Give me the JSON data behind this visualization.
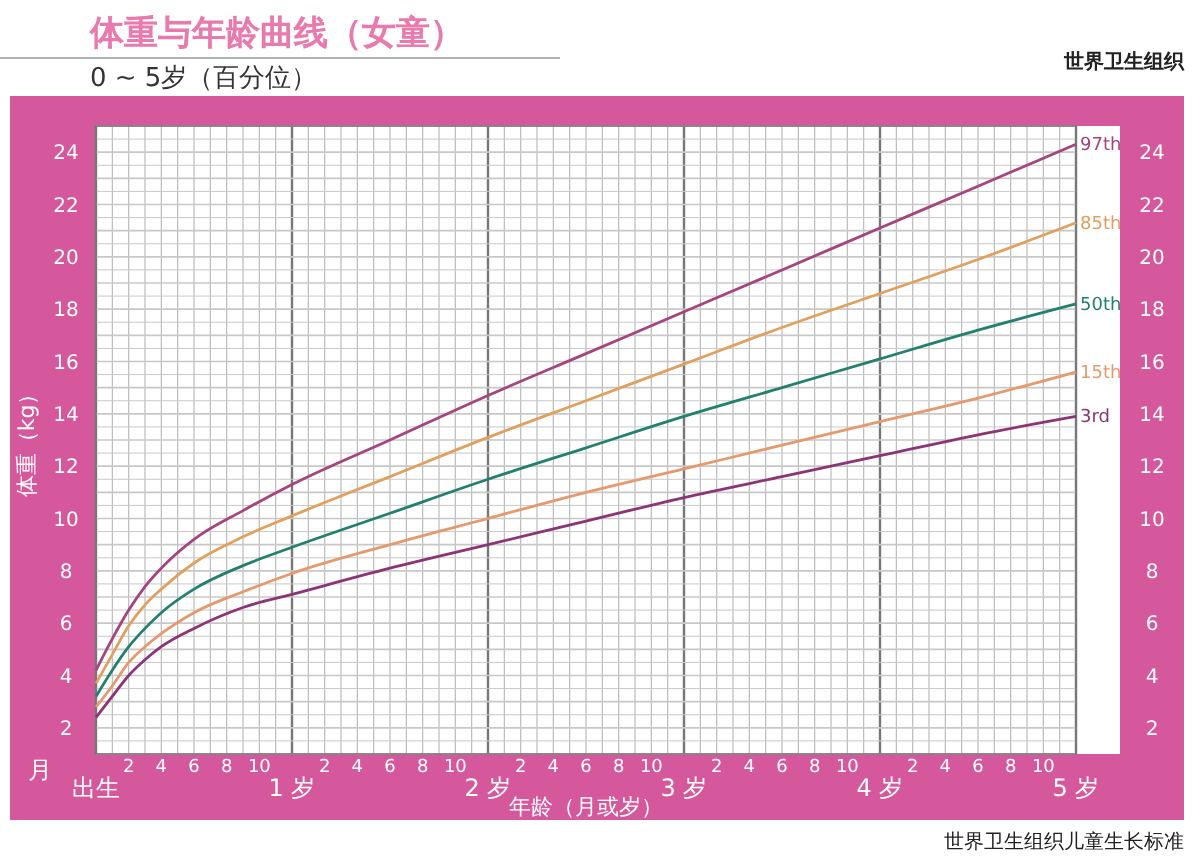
{
  "chart_data": {
    "type": "line",
    "title": "体重与年龄曲线（女童）",
    "subtitle": "0 ~ 5岁（百分位）",
    "ylabel": "体重（kg）",
    "xlabel": "年龄（月或岁）",
    "annotations": [
      "世界卫生组织",
      "月",
      "世界卫生组织儿童生长标准",
      "2",
      "4",
      "6",
      "8",
      "10",
      "2",
      "4",
      "6",
      "8",
      "10",
      "2",
      "4",
      "6",
      "8",
      "10",
      "2",
      "4",
      "6",
      "8",
      "10",
      "2",
      "4",
      "6",
      "8",
      "10"
    ],
    "x": [
      0,
      0.083,
      0.167,
      0.25,
      0.333,
      0.5,
      0.75,
      1,
      1.5,
      2,
      2.5,
      3,
      3.5,
      4,
      4.5,
      5
    ],
    "xlim": [
      0,
      5
    ],
    "xticks": [
      {
        "value": 0,
        "label": "出生"
      },
      {
        "value": 1,
        "label": "1 岁"
      },
      {
        "value": 2,
        "label": "2 岁"
      },
      {
        "value": 3,
        "label": "3 岁"
      },
      {
        "value": 4,
        "label": "4 岁"
      },
      {
        "value": 5,
        "label": "5 岁"
      }
    ],
    "ylim": [
      1,
      25
    ],
    "yticks": [
      2,
      4,
      6,
      8,
      10,
      12,
      14,
      16,
      18,
      20,
      22,
      24
    ],
    "y2lim": [
      1,
      25
    ],
    "y2ticks": [
      2,
      4,
      6,
      8,
      10,
      12,
      14,
      16,
      18,
      20,
      22,
      24
    ],
    "grid": true,
    "series": [
      {
        "name": "97th",
        "color": "#a4457f",
        "values": [
          4.2,
          5.4,
          6.5,
          7.4,
          8.1,
          9.2,
          10.3,
          11.3,
          13.0,
          14.7,
          16.3,
          17.9,
          19.5,
          21.1,
          22.7,
          24.3
        ]
      },
      {
        "name": "85th",
        "color": "#e0a060",
        "values": [
          3.7,
          4.8,
          5.9,
          6.7,
          7.3,
          8.3,
          9.3,
          10.1,
          11.6,
          13.1,
          14.5,
          15.9,
          17.3,
          18.6,
          19.9,
          21.3
        ]
      },
      {
        "name": "50th",
        "color": "#23806f",
        "values": [
          3.2,
          4.2,
          5.1,
          5.8,
          6.4,
          7.3,
          8.2,
          8.9,
          10.2,
          11.5,
          12.7,
          13.9,
          15.0,
          16.1,
          17.2,
          18.2
        ]
      },
      {
        "name": "15th",
        "color": "#e49a6e",
        "values": [
          2.8,
          3.6,
          4.5,
          5.1,
          5.6,
          6.4,
          7.2,
          7.9,
          9.0,
          10.0,
          11.0,
          11.9,
          12.8,
          13.7,
          14.6,
          15.6
        ]
      },
      {
        "name": "3rd",
        "color": "#8c3576",
        "values": [
          2.4,
          3.2,
          4.0,
          4.6,
          5.1,
          5.8,
          6.6,
          7.1,
          8.1,
          9.0,
          9.9,
          10.8,
          11.6,
          12.4,
          13.2,
          13.9
        ]
      }
    ]
  }
}
